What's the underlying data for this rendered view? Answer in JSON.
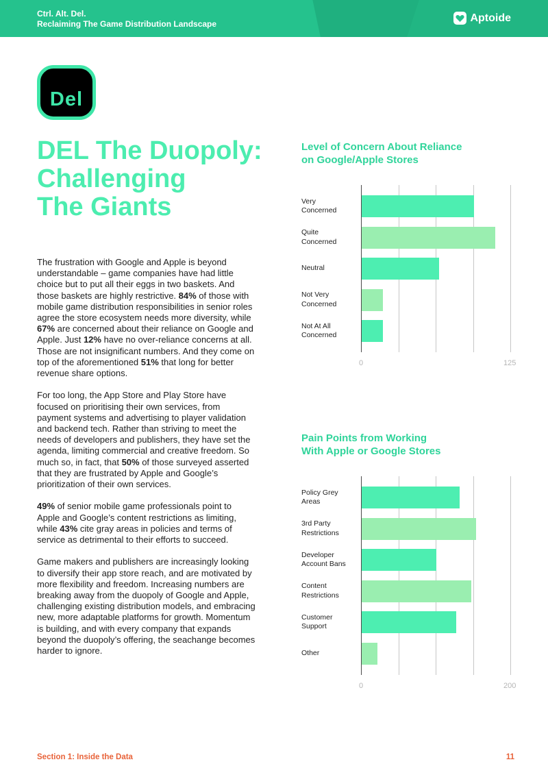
{
  "header": {
    "line1": "Ctrl. Alt. Del.",
    "line2": "Reclaiming The Game Distribution Landscape",
    "logo_text": "Aptoide",
    "logo_icon": "heart-icon"
  },
  "badge": {
    "text": "Del"
  },
  "title": {
    "line1": "DEL The Duopoly:",
    "line2": "Challenging",
    "line3": "The Giants"
  },
  "body": {
    "p1": [
      {
        "t": "The frustration with Google and Apple is beyond understandable – game companies have had little choice but to put all their eggs in two baskets. And those baskets are highly restrictive. "
      },
      {
        "t": "84%",
        "b": true
      },
      {
        "t": " of those with mobile game distribution responsibilities in senior roles agree the store ecosystem needs more diversity, while "
      },
      {
        "t": "67%",
        "b": true
      },
      {
        "t": " are concerned about their reliance on Google and Apple. Just "
      },
      {
        "t": "12%",
        "b": true
      },
      {
        "t": " have no over-reliance concerns at all. Those are not insignificant numbers. And they come on top of the aforementioned "
      },
      {
        "t": "51%",
        "b": true
      },
      {
        "t": " that long for better revenue share options."
      }
    ],
    "p2": [
      {
        "t": "For too long, the App Store and Play Store have focused on prioritising their own services, from payment systems and advertising to player validation and backend tech. Rather than striving to meet the needs of developers and publishers, they have set the agenda, limiting commercial and creative freedom. So much so, in fact, that "
      },
      {
        "t": "50%",
        "b": true
      },
      {
        "t": " of those surveyed asserted that they are frustrated by Apple and Google’s prioritization of their own services."
      }
    ],
    "p3": [
      {
        "t": "49%",
        "b": true
      },
      {
        "t": " of senior mobile game professionals point to Apple and Google’s content restrictions as limiting, while "
      },
      {
        "t": "43%",
        "b": true
      },
      {
        "t": " cite gray areas in policies and terms of service as detrimental to their efforts to succeed."
      }
    ],
    "p4": [
      {
        "t": "Game makers and publishers are increasingly looking to diversify their app store reach, and are motivated by more flexibility and freedom. Increasing numbers are breaking away from the duopoly of Google and Apple, challenging existing distribution models, and embracing new, more adaptable platforms for growth. Momentum is building, and with every company that expands beyond the duopoly’s offering, the seachange becomes harder to ignore."
      }
    ]
  },
  "chart_data": [
    {
      "type": "bar",
      "orientation": "horizontal",
      "title_lines": [
        "Level of Concern About Reliance",
        "on Google/Apple Stores"
      ],
      "categories": [
        [
          "Very",
          "Concerned"
        ],
        [
          "Quite",
          "Concerned"
        ],
        [
          "Neutral"
        ],
        [
          "Not Very",
          "Concerned"
        ],
        [
          "Not At All",
          "Concerned"
        ]
      ],
      "values": [
        94,
        112,
        65,
        18,
        18
      ],
      "colors": [
        "#4deeb1",
        "#9aeeb0",
        "#4deeb1",
        "#9aeeb0",
        "#4deeb1"
      ],
      "xlim": [
        0,
        125
      ],
      "ticks": [
        "0",
        "125"
      ],
      "gridlines": 5,
      "grid": true
    },
    {
      "type": "bar",
      "orientation": "horizontal",
      "title_lines": [
        "Pain Points from Working",
        "With Apple or Google Stores"
      ],
      "categories": [
        [
          "Policy Grey",
          "Areas"
        ],
        [
          "3rd Party",
          "Restrictions"
        ],
        [
          "Developer",
          "Account Bans"
        ],
        [
          "Content",
          "Restrictions"
        ],
        [
          "Customer",
          "Support"
        ],
        [
          "Other"
        ]
      ],
      "values": [
        131,
        153,
        100,
        147,
        127,
        21
      ],
      "colors": [
        "#4deeb1",
        "#9aeeb0",
        "#4deeb1",
        "#9aeeb0",
        "#4deeb1",
        "#9aeeb0"
      ],
      "xlim": [
        0,
        200
      ],
      "ticks": [
        "0",
        "200"
      ],
      "gridlines": 5,
      "grid": true
    }
  ],
  "footer": {
    "section": "Section 1: Inside the Data",
    "page": "11"
  }
}
